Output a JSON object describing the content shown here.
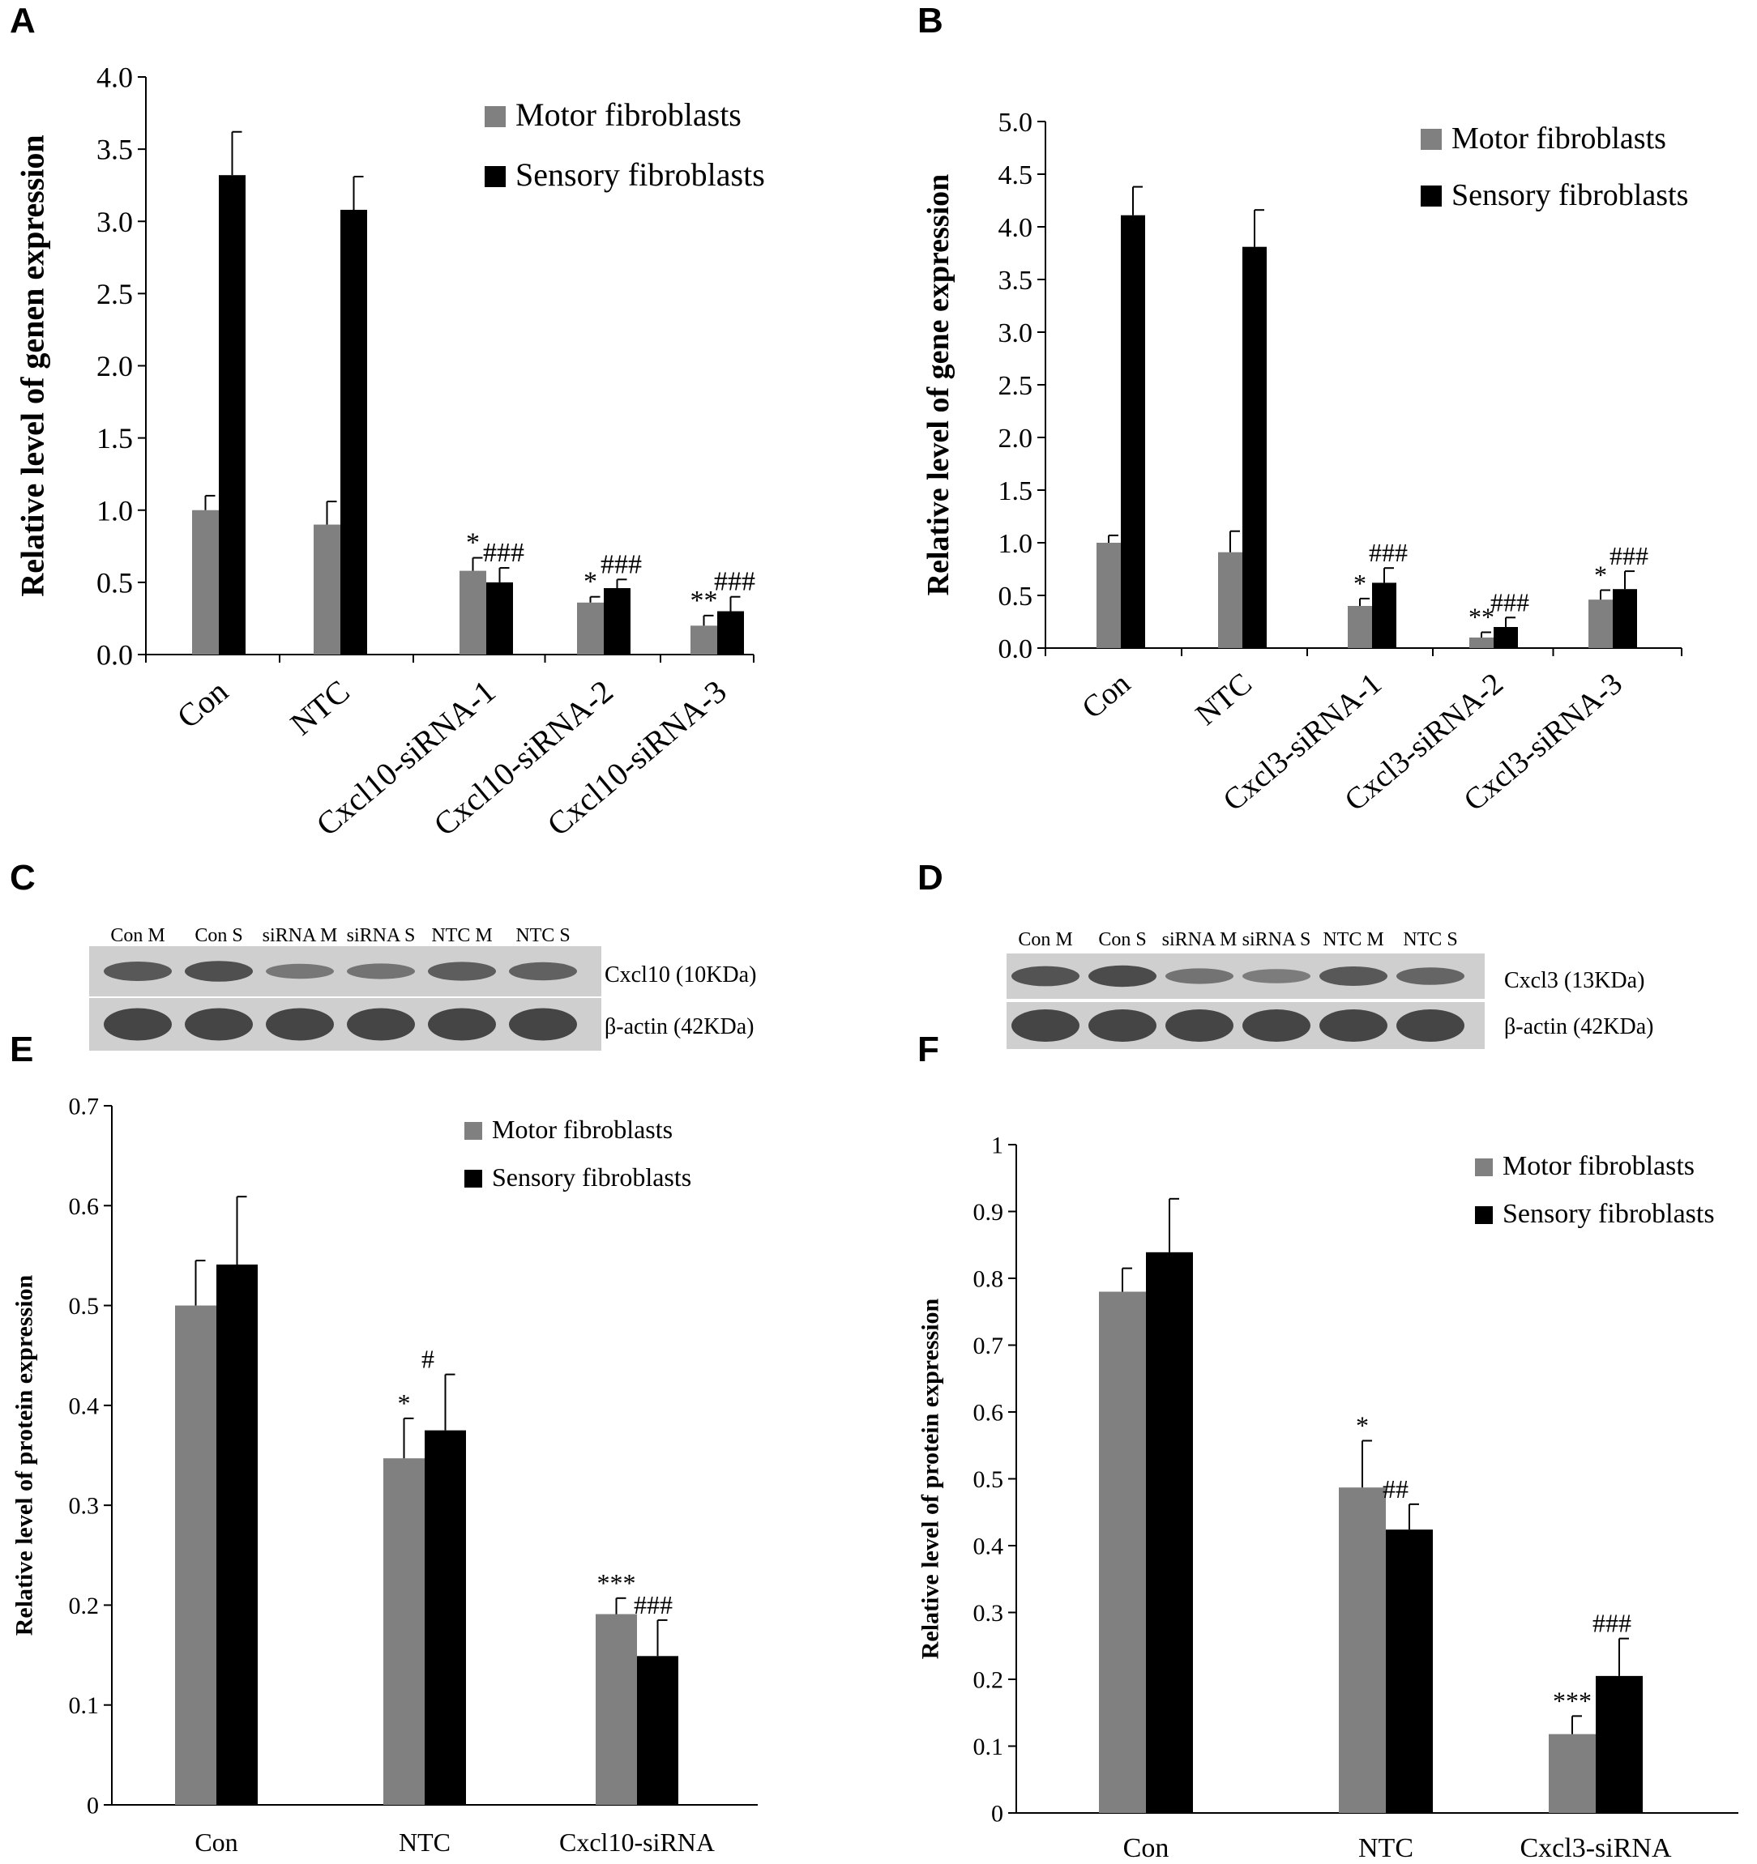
{
  "panels": {
    "A": {
      "letter": "A"
    },
    "B": {
      "letter": "B"
    },
    "C": {
      "letter": "C"
    },
    "D": {
      "letter": "D"
    },
    "E": {
      "letter": "E"
    },
    "F": {
      "letter": "F"
    }
  },
  "colors": {
    "motor": "#808080",
    "sensory": "#000000",
    "blot_bg": "#cfcfcf",
    "band": "#3a3a3a"
  },
  "blots": [
    {
      "id": "C",
      "lane_labels": [
        "Con M",
        "Con S",
        "siRNA M",
        "siRNA S",
        "NTC M",
        "NTC S"
      ],
      "row_labels": [
        "Cxcl10 (10KDa)",
        "β-actin (42KDa)"
      ],
      "band_intensity": [
        [
          0.75,
          0.85,
          0.4,
          0.45,
          0.7,
          0.65
        ],
        [
          0.95,
          0.95,
          0.95,
          0.95,
          0.95,
          0.95
        ]
      ]
    },
    {
      "id": "D",
      "lane_labels": [
        "Con M",
        "Con S",
        "siRNA M",
        "siRNA S",
        "NTC M",
        "NTC S"
      ],
      "row_labels": [
        "Cxcl3 (13KDa)",
        "β-actin (42KDa)"
      ],
      "band_intensity": [
        [
          0.8,
          0.9,
          0.45,
          0.35,
          0.75,
          0.6
        ],
        [
          0.95,
          0.95,
          0.95,
          0.95,
          0.95,
          0.95
        ]
      ]
    }
  ],
  "chart_data": [
    {
      "id": "A",
      "type": "bar",
      "ylabel": "Relative level of genen expression",
      "ylim": [
        0,
        4.0
      ],
      "yticks": [
        "0.0",
        "0.5",
        "1.0",
        "1.5",
        "2.0",
        "2.5",
        "3.0",
        "3.5",
        "4.0"
      ],
      "categories": [
        "Con",
        "NTC",
        "Cxcl10-siRNA-1",
        "Cxcl10-siRNA-2",
        "Cxcl10-siRNA-3"
      ],
      "series": [
        {
          "name": "Motor fibroblasts",
          "values": [
            1.0,
            0.9,
            0.58,
            0.36,
            0.2
          ],
          "errors": [
            0.1,
            0.16,
            0.09,
            0.04,
            0.07
          ],
          "annotations": [
            "",
            "",
            "*",
            "*",
            "**"
          ]
        },
        {
          "name": "Sensory fibroblasts",
          "values": [
            3.32,
            3.08,
            0.5,
            0.46,
            0.3
          ],
          "errors": [
            0.3,
            0.23,
            0.1,
            0.06,
            0.1
          ],
          "annotations": [
            "",
            "",
            "###",
            "###",
            "###"
          ]
        }
      ]
    },
    {
      "id": "B",
      "type": "bar",
      "ylabel": "Relative level of gene expression",
      "ylim": [
        0,
        5.0
      ],
      "yticks": [
        "0.0",
        "0.5",
        "1.0",
        "1.5",
        "2.0",
        "2.5",
        "3.0",
        "3.5",
        "4.0",
        "4.5",
        "5.0"
      ],
      "categories": [
        "Con",
        "NTC",
        "Cxcl3-siRNA-1",
        "Cxcl3-siRNA-2",
        "Cxcl3-siRNA-3"
      ],
      "series": [
        {
          "name": "Motor fibroblasts",
          "values": [
            1.0,
            0.91,
            0.4,
            0.1,
            0.46
          ],
          "errors": [
            0.07,
            0.2,
            0.07,
            0.05,
            0.09
          ],
          "annotations": [
            "",
            "",
            "*",
            "**",
            "*"
          ]
        },
        {
          "name": "Sensory fibroblasts",
          "values": [
            4.11,
            3.81,
            0.62,
            0.2,
            0.56
          ],
          "errors": [
            0.27,
            0.35,
            0.14,
            0.09,
            0.17
          ],
          "annotations": [
            "",
            "",
            "###",
            "###",
            "###"
          ]
        }
      ]
    },
    {
      "id": "E",
      "type": "bar",
      "ylabel": "Relative level of protein expression",
      "ylim": [
        0,
        0.7
      ],
      "yticks": [
        "0",
        "0.1",
        "0.2",
        "0.3",
        "0.4",
        "0.5",
        "0.6",
        "0.7"
      ],
      "categories": [
        "Con",
        "NTC",
        "Cxcl10-siRNA"
      ],
      "series": [
        {
          "name": "Motor fibroblasts",
          "values": [
            0.5,
            0.347,
            0.191
          ],
          "errors": [
            0.045,
            0.04,
            0.016
          ],
          "annotations": [
            "",
            "*",
            "***"
          ]
        },
        {
          "name": "Sensory fibroblasts",
          "values": [
            0.541,
            0.375,
            0.149
          ],
          "errors": [
            0.068,
            0.056,
            0.036
          ],
          "annotations": [
            "",
            "#",
            "###"
          ]
        }
      ]
    },
    {
      "id": "F",
      "type": "bar",
      "ylabel": "Relative level of protein expression",
      "ylim": [
        0,
        1
      ],
      "yticks": [
        "0",
        "0.1",
        "0.2",
        "0.3",
        "0.4",
        "0.5",
        "0.6",
        "0.7",
        "0.8",
        "0.9",
        "1"
      ],
      "categories": [
        "Con",
        "NTC",
        "Cxcl3-siRNA"
      ],
      "series": [
        {
          "name": "Motor fibroblasts",
          "values": [
            0.78,
            0.487,
            0.118
          ],
          "errors": [
            0.035,
            0.07,
            0.027
          ],
          "annotations": [
            "",
            "*",
            "***"
          ]
        },
        {
          "name": "Sensory fibroblasts",
          "values": [
            0.839,
            0.424,
            0.205
          ],
          "errors": [
            0.08,
            0.038,
            0.056
          ],
          "annotations": [
            "",
            "##",
            "###"
          ]
        }
      ]
    }
  ]
}
